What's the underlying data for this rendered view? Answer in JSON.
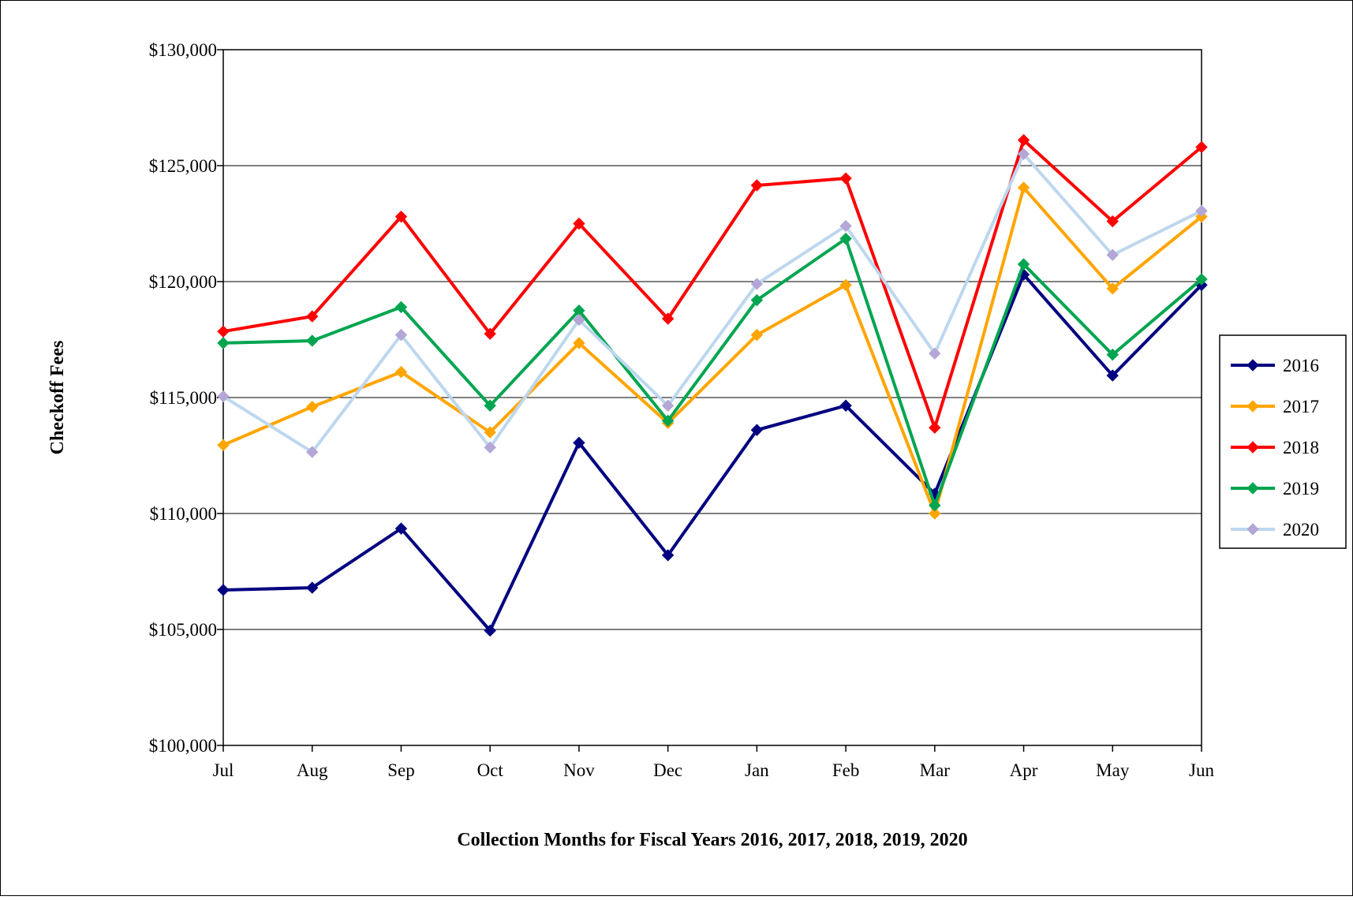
{
  "chart_data": {
    "type": "line",
    "title": "",
    "xlabel": "Collection Months for Fiscal Years 2016, 2017, 2018, 2019, 2020",
    "ylabel": "Checkoff Fees",
    "categories": [
      "Jul",
      "Aug",
      "Sep",
      "Oct",
      "Nov",
      "Dec",
      "Jan",
      "Feb",
      "Mar",
      "Apr",
      "May",
      "Jun"
    ],
    "ylim": [
      100000,
      130000
    ],
    "yticks": [
      100000,
      105000,
      110000,
      115000,
      120000,
      125000,
      130000
    ],
    "ytick_labels": [
      "$100,000",
      "$105,000",
      "$110,000",
      "$115,000",
      "$120,000",
      "$125,000",
      "$130,000"
    ],
    "grid": "horizontal",
    "legend_position": "right",
    "series": [
      {
        "name": "2016",
        "color": "#000080",
        "values": [
          106700,
          106800,
          109350,
          104950,
          113050,
          108200,
          113600,
          114650,
          110850,
          120300,
          115950,
          119850
        ]
      },
      {
        "name": "2017",
        "color": "#FFA500",
        "values": [
          112950,
          114600,
          116100,
          113500,
          117350,
          113900,
          117700,
          119850,
          110000,
          124050,
          119700,
          122800
        ]
      },
      {
        "name": "2018",
        "color": "#FF0000",
        "values": [
          117850,
          118500,
          122800,
          117750,
          122500,
          118400,
          124150,
          124450,
          113700,
          126100,
          122600,
          125800
        ]
      },
      {
        "name": "2019",
        "color": "#00A550",
        "values": [
          117350,
          117450,
          118900,
          114650,
          118750,
          114000,
          119200,
          121850,
          110350,
          120750,
          116850,
          120100
        ]
      },
      {
        "name": "2020",
        "color": "#BDD7EE",
        "markerColor": "#B4A7D6",
        "values": [
          115050,
          112650,
          117700,
          112850,
          118350,
          114650,
          119900,
          122400,
          116900,
          125500,
          121150,
          123050
        ]
      }
    ]
  }
}
